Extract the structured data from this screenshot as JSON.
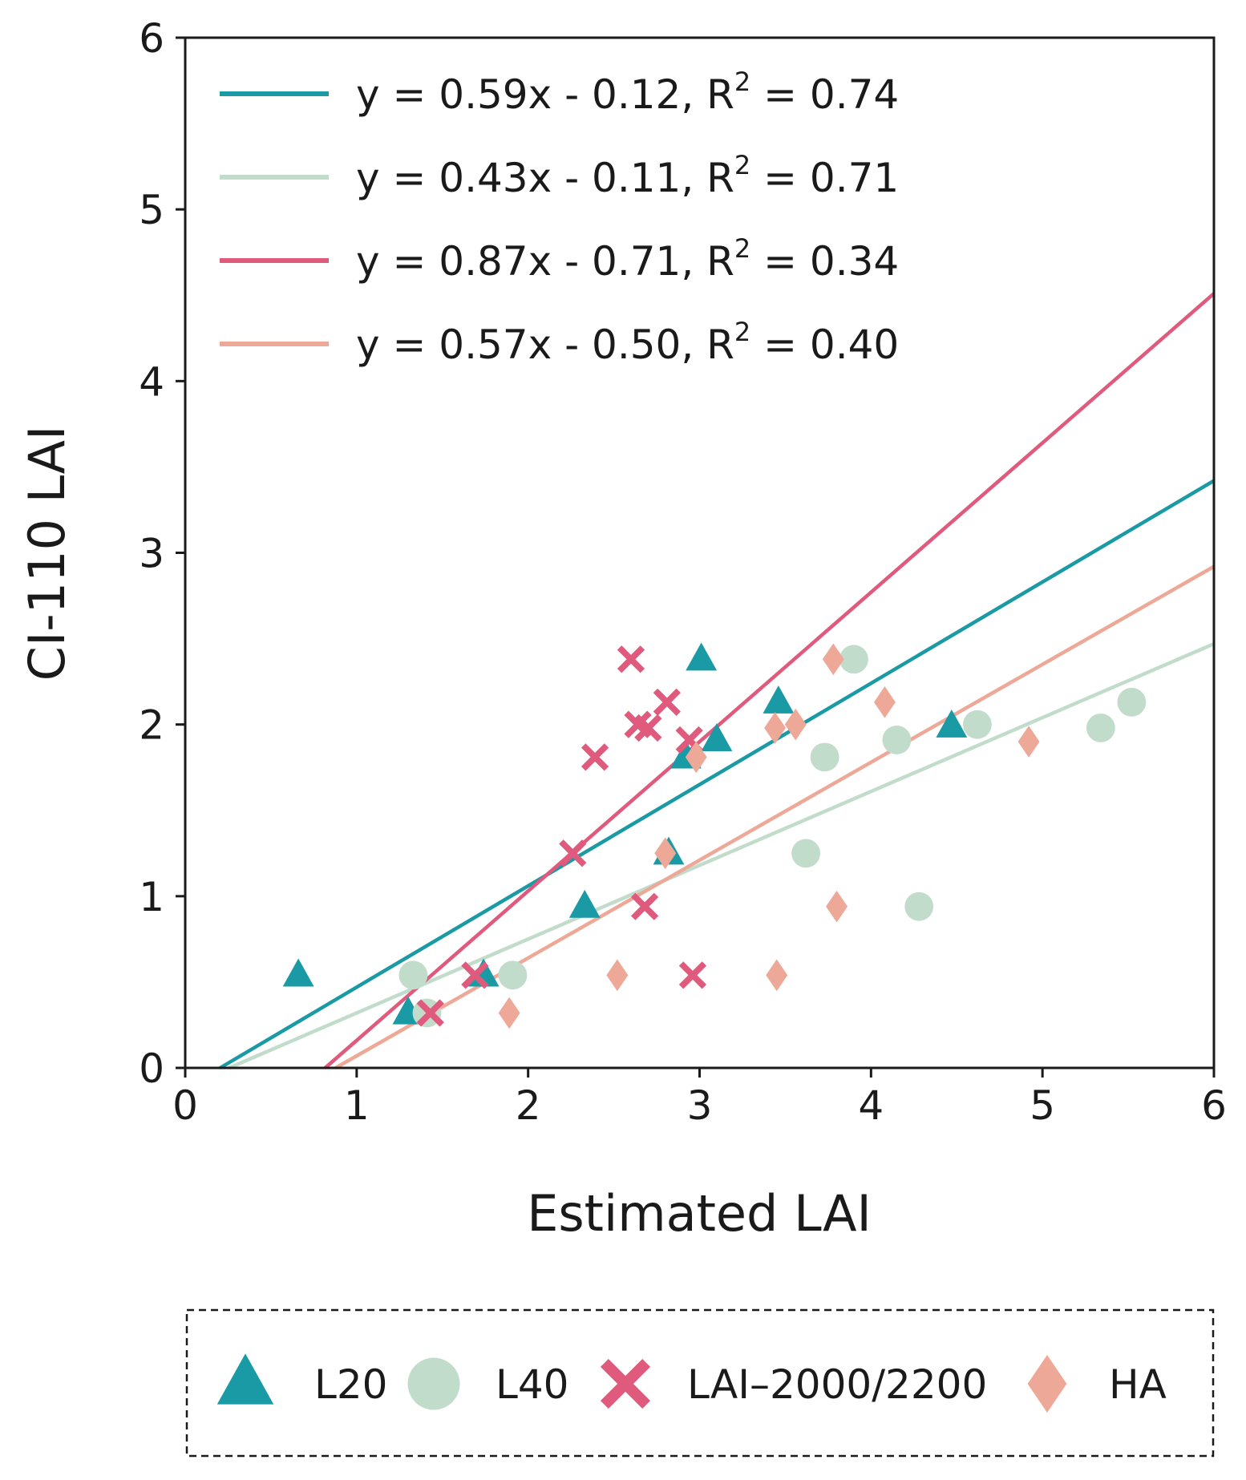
{
  "chart_data": {
    "type": "scatter",
    "title": "",
    "xlabel": "Estimated LAI",
    "ylabel": "CI-110 LAI",
    "xlim": [
      0,
      6
    ],
    "ylim": [
      0,
      6
    ],
    "xticks": [
      "0",
      "1",
      "2",
      "3",
      "4",
      "5",
      "6"
    ],
    "yticks": [
      "0",
      "1",
      "2",
      "3",
      "4",
      "5",
      "6"
    ],
    "grid": false,
    "fit_legend_position": "top-left",
    "marker_legend_position": "bottom",
    "colors": {
      "L20": "#1a9aa4",
      "L40": "#c2dccb",
      "LAI": "#df5a7c",
      "HA": "#eda898"
    },
    "fits": [
      {
        "series": "L20",
        "slope": 0.59,
        "intercept": -0.12,
        "label_prefix": "y = 0.59x - 0.12, R",
        "label_suffix": " = 0.74",
        "sup": "2"
      },
      {
        "series": "L40",
        "slope": 0.43,
        "intercept": -0.11,
        "label_prefix": "y = 0.43x - 0.11, R",
        "label_suffix": " = 0.71",
        "sup": "2"
      },
      {
        "series": "LAI",
        "slope": 0.87,
        "intercept": -0.71,
        "label_prefix": "y = 0.87x - 0.71, R",
        "label_suffix": " = 0.34",
        "sup": "2"
      },
      {
        "series": "HA",
        "slope": 0.57,
        "intercept": -0.5,
        "label_prefix": "y = 0.57x - 0.50, R",
        "label_suffix": " = 0.40",
        "sup": "2"
      }
    ],
    "series": [
      {
        "key": "L20",
        "name": "L20",
        "marker": "triangle",
        "points": [
          [
            0.66,
            0.54
          ],
          [
            1.3,
            0.32
          ],
          [
            1.74,
            0.54
          ],
          [
            2.33,
            0.94
          ],
          [
            2.82,
            1.25
          ],
          [
            2.92,
            1.81
          ],
          [
            3.01,
            2.38
          ],
          [
            3.1,
            1.91
          ],
          [
            3.46,
            2.13
          ],
          [
            4.47,
            1.99
          ]
        ]
      },
      {
        "key": "L40",
        "name": "L40",
        "marker": "circle",
        "points": [
          [
            1.33,
            0.54
          ],
          [
            1.41,
            0.32
          ],
          [
            1.91,
            0.54
          ],
          [
            3.62,
            1.25
          ],
          [
            3.73,
            1.81
          ],
          [
            3.9,
            2.38
          ],
          [
            4.15,
            1.91
          ],
          [
            4.28,
            0.94
          ],
          [
            4.62,
            2.0
          ],
          [
            5.34,
            1.98
          ],
          [
            5.52,
            2.13
          ]
        ]
      },
      {
        "key": "LAI",
        "name": "LAI–2000/2200",
        "marker": "x",
        "points": [
          [
            1.43,
            0.32
          ],
          [
            1.69,
            0.54
          ],
          [
            2.26,
            1.25
          ],
          [
            2.39,
            1.81
          ],
          [
            2.6,
            2.38
          ],
          [
            2.64,
            2.0
          ],
          [
            2.7,
            1.98
          ],
          [
            2.68,
            0.94
          ],
          [
            2.81,
            2.13
          ],
          [
            2.94,
            1.91
          ],
          [
            2.96,
            0.54
          ]
        ]
      },
      {
        "key": "HA",
        "name": "HA",
        "marker": "diamond",
        "points": [
          [
            1.89,
            0.32
          ],
          [
            2.52,
            0.54
          ],
          [
            2.8,
            1.25
          ],
          [
            2.98,
            1.81
          ],
          [
            3.44,
            1.98
          ],
          [
            3.56,
            2.0
          ],
          [
            3.45,
            0.54
          ],
          [
            3.78,
            2.38
          ],
          [
            3.8,
            0.94
          ],
          [
            4.08,
            2.13
          ],
          [
            4.92,
            1.9
          ]
        ]
      }
    ]
  }
}
